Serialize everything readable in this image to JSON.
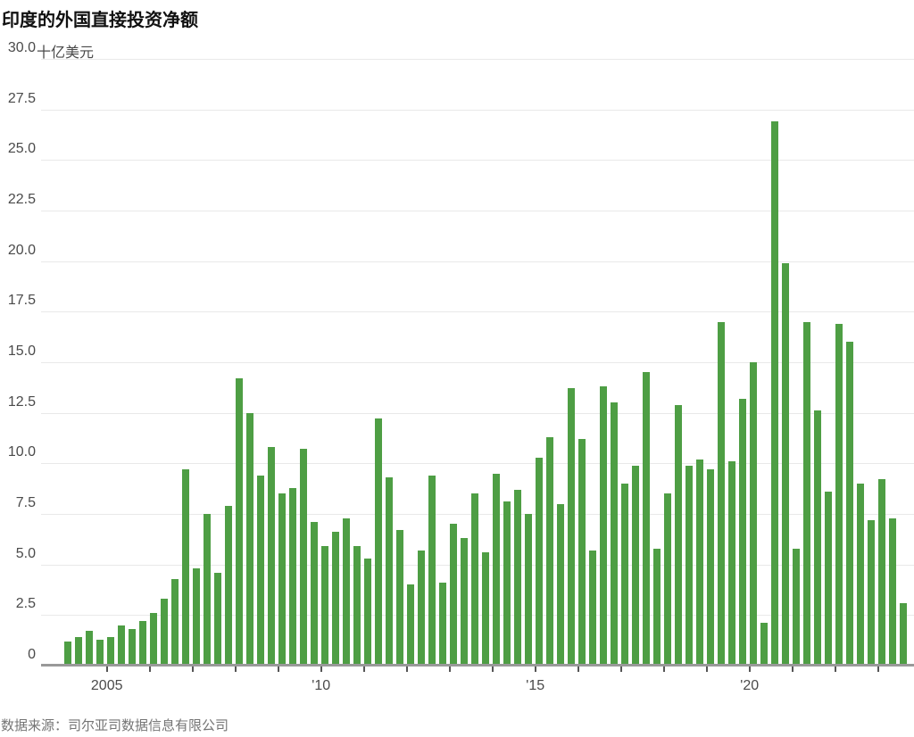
{
  "chart_data": {
    "type": "bar",
    "title": "印度的外国直接投资净额",
    "unit_label": "十亿美元",
    "source": "数据来源：司尔亚司数据信息有限公司",
    "bar_color": "#4e9e44",
    "ylim": [
      0,
      30
    ],
    "grid": true,
    "legend_position": "none",
    "y_ticks": [
      {
        "v": 30,
        "label": "30.0"
      },
      {
        "v": 27.5,
        "label": "27.5"
      },
      {
        "v": 25,
        "label": "25.0"
      },
      {
        "v": 22.5,
        "label": "22.5"
      },
      {
        "v": 20,
        "label": "20.0"
      },
      {
        "v": 17.5,
        "label": "17.5"
      },
      {
        "v": 15,
        "label": "15.0"
      },
      {
        "v": 12.5,
        "label": "12.5"
      },
      {
        "v": 10,
        "label": "10.0"
      },
      {
        "v": 7.5,
        "label": "7.5"
      },
      {
        "v": 5,
        "label": "5.0"
      },
      {
        "v": 2.5,
        "label": "2.5"
      },
      {
        "v": 0,
        "label": "0"
      }
    ],
    "x_axis": {
      "first_tick_year": 2005,
      "last_tick_year": 2023,
      "labeled_ticks": [
        {
          "year": 2005,
          "label": "2005"
        },
        {
          "year": 2010,
          "label": "'10"
        },
        {
          "year": 2015,
          "label": "'15"
        },
        {
          "year": 2020,
          "label": "'20"
        }
      ]
    },
    "series_by_year": [
      {
        "year": 2004,
        "q": [
          1.2,
          1.4,
          1.7,
          1.3
        ]
      },
      {
        "year": 2005,
        "q": [
          1.4,
          2.0,
          1.8,
          2.2
        ]
      },
      {
        "year": 2006,
        "q": [
          2.6,
          3.3,
          4.3,
          9.7
        ]
      },
      {
        "year": 2007,
        "q": [
          4.8,
          7.5,
          4.6,
          7.9
        ]
      },
      {
        "year": 2008,
        "q": [
          14.2,
          12.5,
          9.4,
          10.8
        ]
      },
      {
        "year": 2009,
        "q": [
          8.5,
          8.8,
          10.7,
          7.1
        ]
      },
      {
        "year": 2010,
        "q": [
          5.9,
          6.6,
          7.3,
          5.9
        ]
      },
      {
        "year": 2011,
        "q": [
          5.3,
          12.2,
          9.3,
          6.7
        ]
      },
      {
        "year": 2012,
        "q": [
          4.0,
          5.7,
          9.4,
          4.1
        ]
      },
      {
        "year": 2013,
        "q": [
          7.0,
          6.3,
          8.5,
          5.6
        ]
      },
      {
        "year": 2014,
        "q": [
          9.5,
          8.1,
          8.7,
          7.5
        ]
      },
      {
        "year": 2015,
        "q": [
          10.3,
          11.3,
          8.0,
          13.7
        ]
      },
      {
        "year": 2016,
        "q": [
          11.2,
          5.7,
          13.8,
          13.0
        ]
      },
      {
        "year": 2017,
        "q": [
          9.0,
          9.9,
          14.5,
          5.8
        ]
      },
      {
        "year": 2018,
        "q": [
          8.5,
          12.9,
          9.9,
          10.2
        ]
      },
      {
        "year": 2019,
        "q": [
          9.7,
          17.0,
          10.1,
          13.2
        ]
      },
      {
        "year": 2020,
        "q": [
          15.0,
          2.1,
          26.9,
          19.9
        ]
      },
      {
        "year": 2021,
        "q": [
          5.8,
          17.0,
          12.6,
          8.6
        ]
      },
      {
        "year": 2022,
        "q": [
          16.9,
          16.0,
          9.0,
          7.2
        ]
      },
      {
        "year": 2023,
        "q": [
          9.2,
          7.3,
          3.1
        ]
      }
    ]
  }
}
